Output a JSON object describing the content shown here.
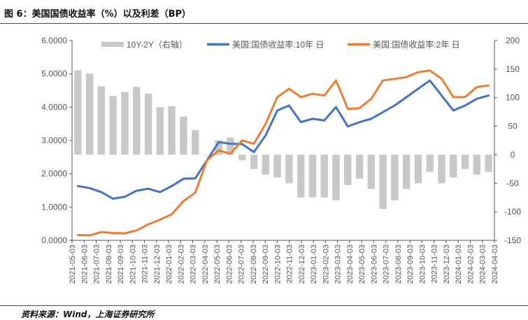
{
  "header": {
    "title": "图 6：美国国债收益率（%）以及利差（BP）"
  },
  "footer": {
    "source": "资料来源：Wind，上海证券研究所"
  },
  "colors": {
    "spread": "#c8c8c8",
    "y10": "#4472c4",
    "y2": "#ed7d31",
    "accent_rule": "#c8161e"
  },
  "chart_data": {
    "type": "line",
    "x_tick_labels": [
      "2021-05-03",
      "2021-06-03",
      "2021-07-03",
      "2021-08-03",
      "2021-09-03",
      "2021-10-03",
      "2021-11-03",
      "2021-12-03",
      "2022-01-03",
      "2022-02-03",
      "2022-03-03",
      "2022-04-03",
      "2022-05-03",
      "2022-06-03",
      "2022-07-03",
      "2022-08-03",
      "2022-09-03",
      "2022-10-03",
      "2022-11-03",
      "2022-12-03",
      "2023-01-03",
      "2023-02-03",
      "2023-03-03",
      "2023-04-03",
      "2023-05-03",
      "2023-06-03",
      "2023-07-03",
      "2023-08-03",
      "2023-09-03",
      "2023-10-03",
      "2023-11-03",
      "2023-12-03",
      "2024-01-03",
      "2024-02-03",
      "2024-03-03",
      "2024-04-03"
    ],
    "left_axis": {
      "ticks": [
        "0.0000",
        "1.0000",
        "2.0000",
        "3.0000",
        "4.0000",
        "5.0000",
        "6.0000"
      ],
      "ylim": [
        0,
        6
      ]
    },
    "right_axis": {
      "ticks": [
        "-150",
        "-100",
        "-50",
        "0",
        "50",
        "100",
        "150",
        "200"
      ],
      "ylim": [
        -150,
        200
      ]
    },
    "legend": [
      "10Y-2Y（右轴）",
      "美国:国债收益率:10年 日",
      "美国:国债收益率:2年 日"
    ],
    "series": [
      {
        "name": "美国:国债收益率:10年 日",
        "axis": "left",
        "values": [
          1.63,
          1.57,
          1.45,
          1.25,
          1.31,
          1.49,
          1.55,
          1.45,
          1.63,
          1.85,
          1.86,
          2.4,
          2.95,
          2.9,
          2.89,
          2.65,
          3.15,
          3.9,
          4.05,
          3.55,
          3.65,
          3.6,
          4.0,
          3.42,
          3.55,
          3.65,
          3.85,
          4.05,
          4.3,
          4.55,
          4.8,
          4.35,
          3.9,
          4.05,
          4.25,
          4.35
        ]
      },
      {
        "name": "美国:国债收益率:2年 日",
        "axis": "left",
        "values": [
          0.16,
          0.15,
          0.25,
          0.22,
          0.21,
          0.3,
          0.48,
          0.62,
          0.78,
          1.18,
          1.43,
          2.4,
          2.7,
          2.6,
          3.0,
          2.9,
          3.5,
          4.3,
          4.55,
          4.3,
          4.4,
          4.35,
          4.8,
          3.95,
          3.97,
          4.25,
          4.8,
          4.85,
          4.9,
          5.05,
          5.1,
          4.85,
          4.3,
          4.3,
          4.6,
          4.65
        ]
      },
      {
        "name": "10Y-2Y（右轴）",
        "axis": "right",
        "type": "bar",
        "values": [
          148,
          142,
          120,
          103,
          110,
          119,
          107,
          83,
          85,
          67,
          43,
          0,
          25,
          30,
          -10,
          -25,
          -35,
          -40,
          -50,
          -75,
          -75,
          -75,
          -80,
          -53,
          -42,
          -60,
          -95,
          -80,
          -60,
          -50,
          -30,
          -50,
          -40,
          -25,
          -35,
          -30
        ]
      }
    ],
    "xlabel": "",
    "ylabel": "",
    "grid": false,
    "legend_position": "top"
  }
}
